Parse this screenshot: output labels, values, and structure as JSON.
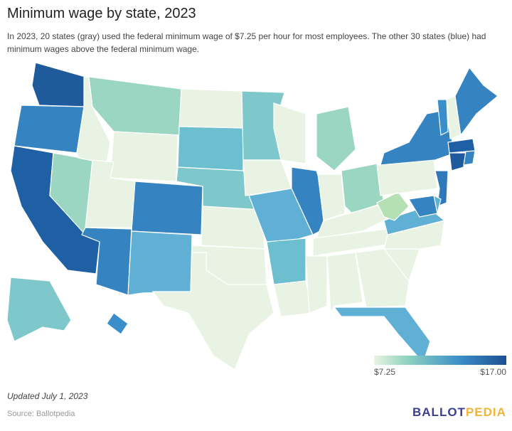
{
  "title": "Minimum wage by state, 2023",
  "subtitle": "In 2023, 20 states (gray) used the federal minimum wage of $7.25 per hour for most employees. The other 30 states (blue) had minimum wages above the federal minimum wage.",
  "legend": {
    "min_label": "$7.25",
    "max_label": "$17.00",
    "min_color": "#e8f4e2",
    "max_color": "#1d4f93"
  },
  "updated": "Updated July 1, 2023",
  "source": "Source: Ballotpedia",
  "logo": {
    "part1": "BALLOT",
    "part2": "PEDIA"
  },
  "state_colors": {
    "WA": "#1f5a9c",
    "OR": "#3584c1",
    "CA": "#1f5fa3",
    "NV": "#9bd6c3",
    "ID": "#e8f3e3",
    "MT": "#9bd6c3",
    "WY": "#e8f3e3",
    "UT": "#e8f3e3",
    "AZ": "#3584c1",
    "CO": "#3584c1",
    "NM": "#5fb0d4",
    "ND": "#e8f3e3",
    "SD": "#6cbfcf",
    "NE": "#7ec8cb",
    "KS": "#e8f3e3",
    "OK": "#e8f3e3",
    "TX": "#e8f3e3",
    "MN": "#7ec8cb",
    "IA": "#e8f3e3",
    "MO": "#5fb0d4",
    "AR": "#6cbfcf",
    "LA": "#e8f3e3",
    "WI": "#e8f3e3",
    "IL": "#3584c1",
    "MI": "#9bd6c3",
    "IN": "#e8f3e3",
    "OH": "#9bd6c3",
    "KY": "#e8f3e3",
    "TN": "#e8f3e3",
    "MS": "#e8f3e3",
    "AL": "#e8f3e3",
    "GA": "#e8f3e3",
    "FL": "#5fb0d4",
    "SC": "#e8f3e3",
    "NC": "#e8f3e3",
    "VA": "#5fb0d4",
    "WV": "#b5e0b5",
    "PA": "#e8f3e3",
    "NY": "#3584c1",
    "VT": "#3a8ec9",
    "NH": "#e8f3e3",
    "ME": "#3584c1",
    "MA": "#1f5fa3",
    "CT": "#1f5a9c",
    "RI": "#3584c1",
    "NJ": "#2f78ba",
    "DE": "#5fb0d4",
    "MD": "#3584c1",
    "AK": "#7ec8cb",
    "HI": "#3a8ec9"
  }
}
